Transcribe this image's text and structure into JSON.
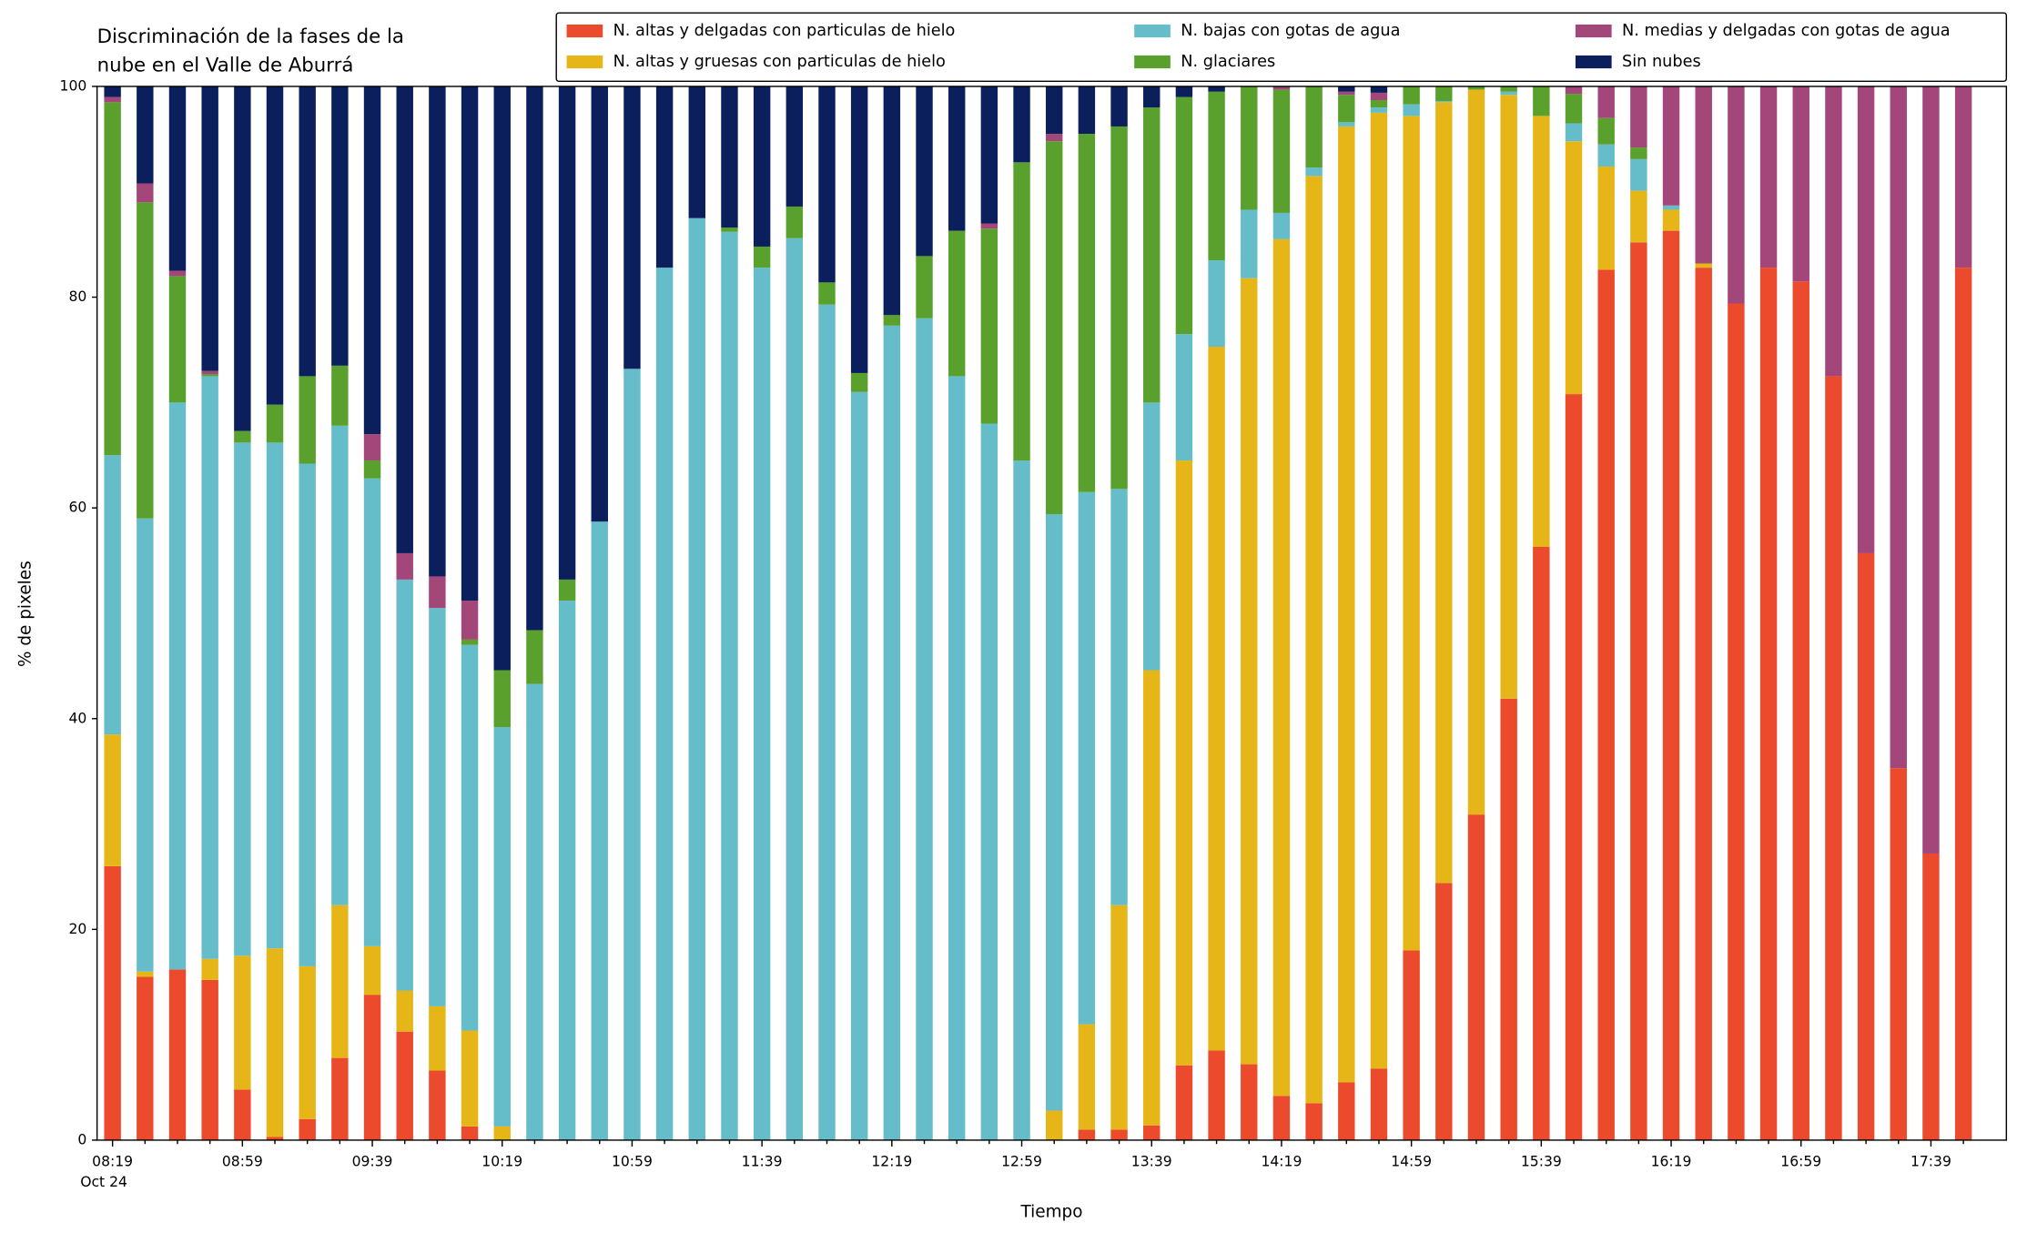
{
  "chart_data": {
    "type": "stacked_bar",
    "title": [
      "Discriminación de la fases de la",
      "nube en el Valle de Aburrá"
    ],
    "xlabel": "Tiempo",
    "ylabel": "% de pixeles",
    "date_label": "Oct 24",
    "categories": [
      "08:19",
      null,
      null,
      null,
      "08:59",
      null,
      null,
      null,
      "09:39",
      null,
      null,
      null,
      "10:19",
      null,
      null,
      null,
      "10:59",
      null,
      null,
      null,
      "11:39",
      null,
      null,
      null,
      "12:19",
      null,
      null,
      null,
      "12:59",
      null,
      null,
      null,
      "13:39",
      null,
      null,
      null,
      "14:19",
      null,
      null,
      null,
      "14:59",
      null,
      null,
      null,
      "15:39",
      null,
      null,
      null,
      "16:19",
      null,
      null,
      null,
      "16:59",
      null,
      null,
      null,
      "17:39",
      null
    ],
    "ylim": [
      0,
      100
    ],
    "yticks": [
      0,
      20,
      40,
      60,
      80,
      100
    ],
    "legend": "top-right",
    "series": [
      {
        "name": "N. altas y delgadas con particulas de hielo",
        "color": "#ec4a2c",
        "values": [
          26,
          15.5,
          16.2,
          15.2,
          4.8,
          0.3,
          2,
          7.8,
          13.8,
          10.3,
          6.6,
          1.3,
          0,
          0,
          0,
          0,
          0,
          0,
          0,
          0,
          0,
          0,
          0,
          0,
          0,
          0,
          0,
          0,
          0,
          0,
          1,
          1,
          1.4,
          7.1,
          8.5,
          7.2,
          4.2,
          3.5,
          5.5,
          6.8,
          18,
          24.4,
          30.9,
          41.9,
          56.3,
          70.8,
          82.6,
          85.2,
          86.3,
          82.8,
          79.4,
          82.8,
          81.5,
          72.5,
          55.7,
          35.3,
          27.2,
          82.8
        ]
      },
      {
        "name": "N. altas y gruesas con particulas de hielo",
        "color": "#e6b619",
        "values": [
          12.5,
          0.5,
          0,
          2,
          12.7,
          17.9,
          14.5,
          14.5,
          4.6,
          3.9,
          6.1,
          9.1,
          1.3,
          0,
          0,
          0,
          0,
          0,
          0,
          0,
          0,
          0,
          0,
          0,
          0,
          0,
          0,
          0,
          0,
          2.8,
          10,
          21.3,
          43.2,
          57.4,
          66.8,
          74.6,
          81.3,
          88,
          90.7,
          90.7,
          79.2,
          74.1,
          68.8,
          57.3,
          40.9,
          24,
          9.8,
          4.9,
          2,
          0.4,
          0,
          0,
          0,
          0,
          0,
          0,
          0,
          0
        ]
      },
      {
        "name": "N. bajas con gotas de agua",
        "color": "#66bdca",
        "values": [
          26.5,
          43,
          53.8,
          55.3,
          48.7,
          48,
          47.7,
          45.5,
          44.4,
          39,
          37.8,
          36.6,
          37.9,
          43.3,
          51.2,
          58.7,
          73.2,
          82.8,
          87.5,
          86.2,
          82.8,
          85.6,
          79.3,
          71,
          77.3,
          78,
          72.5,
          68,
          64.5,
          56.6,
          50.5,
          39.5,
          25.4,
          12,
          8.2,
          6.5,
          2.5,
          0.8,
          0.4,
          0.5,
          1.1,
          0.1,
          0,
          0.3,
          0,
          1.7,
          2.1,
          3,
          0.4,
          0,
          0,
          0,
          0,
          0,
          0,
          0,
          0,
          0
        ]
      },
      {
        "name": "N. glaciares",
        "color": "#5aa02c",
        "values": [
          33.5,
          30,
          12,
          0.2,
          1.1,
          3.6,
          8.3,
          5.7,
          1.7,
          0,
          0,
          0.5,
          5.4,
          5.1,
          2,
          0,
          0,
          0,
          0,
          0.4,
          2,
          3,
          2.1,
          1.8,
          1,
          5.9,
          13.8,
          18.5,
          28.3,
          35.4,
          34,
          34.4,
          28,
          22.5,
          16,
          11.7,
          11.7,
          7.7,
          2.6,
          0.7,
          1.7,
          1.4,
          0.3,
          0.5,
          2.8,
          2.8,
          2.5,
          1.1,
          0,
          0,
          0,
          0,
          0,
          0,
          0,
          0,
          0,
          0
        ]
      },
      {
        "name": "N. medias y delgadas con gotas de agua",
        "color": "#a3467a",
        "values": [
          0.5,
          1.8,
          0.5,
          0.3,
          0,
          0,
          0,
          0,
          2.5,
          2.5,
          3,
          3.7,
          0,
          0,
          0,
          0,
          0,
          0,
          0,
          0,
          0,
          0,
          0,
          0,
          0,
          0,
          0,
          0.5,
          0,
          0.7,
          0,
          0,
          0,
          0,
          0,
          0,
          0.3,
          0,
          0.3,
          0.7,
          0,
          0,
          0,
          0,
          0,
          0.7,
          3,
          5.8,
          11.3,
          16.8,
          20.6,
          17.2,
          18.5,
          27.5,
          44.3,
          64.7,
          72.8,
          17.2
        ]
      },
      {
        "name": "Sin nubes",
        "color": "#0b1f5c",
        "values": [
          1,
          9.2,
          17.5,
          27,
          32.7,
          30.2,
          27.5,
          26.5,
          33,
          44.3,
          46.5,
          48.8,
          55.4,
          51.6,
          46.8,
          41.3,
          26.8,
          17.2,
          12.5,
          13.4,
          15.2,
          11.4,
          18.6,
          27.2,
          21.7,
          16.1,
          13.7,
          13,
          7.2,
          4.5,
          4.5,
          3.8,
          2,
          1,
          0.5,
          0,
          0,
          0,
          0.5,
          0.6,
          0,
          0,
          0,
          0,
          0,
          0,
          0,
          0,
          0,
          0,
          0,
          0,
          0,
          0,
          0,
          0,
          0,
          0
        ]
      }
    ]
  }
}
